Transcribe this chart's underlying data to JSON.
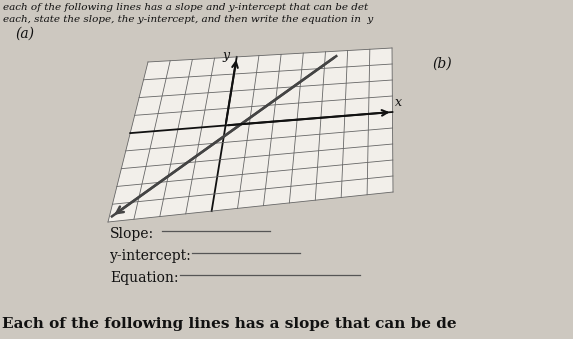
{
  "bg_color": "#cdc8c0",
  "page_color": "#e8e4dc",
  "header_text1": "each of the following lines has a slope and y-intercept that can be det",
  "header_text2": "each, state the slope, the y-intercept, and then write the equation in  y",
  "label_a": "(a)",
  "label_b": "(b)",
  "label_y": "y",
  "label_x": "x",
  "slope_label": "Slope:",
  "yint_label": "y-intercept:",
  "eq_label": "Equation:",
  "footer_text": "Each of the following lines has a slope that can be de",
  "font_size_header": 7.5,
  "font_size_labels": 10,
  "font_size_fields": 10,
  "font_size_footer": 11,
  "grid_rows": 9,
  "grid_cols": 11,
  "grid_color": "#666666",
  "grid_linewidth": 0.6,
  "axis_color": "#111111",
  "line_color": "#444444"
}
